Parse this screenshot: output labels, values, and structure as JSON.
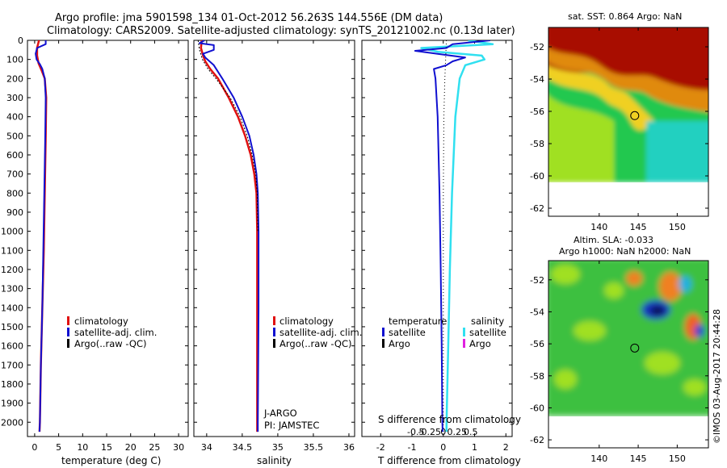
{
  "header": {
    "line1": "Argo profile: jma 5901598_134 01-Oct-2012 56.263S 144.556E (DM data)",
    "line2": "Climatology: CARS2009. Satellite-adjusted climatology: synTS_20121002.nc (0.13d later)"
  },
  "colors": {
    "climatology": "#e01010",
    "satellite": "#1010d0",
    "argo": "#000000",
    "sat_salinity": "#30e0f0",
    "argo_salinity": "#e020e0"
  },
  "credit": "©IMOS 03-Aug-2017 20:44:28",
  "chart_data": [
    {
      "type": "line",
      "id": "temperature",
      "xlabel": "temperature (deg C)",
      "ylabel": "",
      "xlim": [
        -1.5,
        32
      ],
      "ylim": [
        2075,
        0
      ],
      "xticks": [
        0,
        5,
        10,
        15,
        20,
        25,
        30
      ],
      "xtick_labels": [
        "0",
        "5",
        "10",
        "15",
        "20",
        "25",
        "30"
      ],
      "yticks": [
        0,
        100,
        200,
        300,
        400,
        500,
        600,
        700,
        800,
        900,
        1000,
        1100,
        1200,
        1300,
        1400,
        1500,
        1600,
        1700,
        1800,
        1900,
        2000
      ],
      "legend": [
        "climatology",
        "satellite-adj. clim.",
        "Argo(..raw -QC)"
      ],
      "series": [
        {
          "name": "climatology",
          "depth": [
            0,
            40,
            80,
            120,
            160,
            200,
            300,
            500,
            800,
            1100,
            1400,
            1700,
            2000,
            2050
          ],
          "values": [
            0.9,
            0.5,
            0.5,
            0.8,
            1.5,
            2.1,
            2.4,
            2.3,
            2.1,
            1.9,
            1.6,
            1.3,
            1.1,
            1.0
          ]
        },
        {
          "name": "satellite-adj. clim.",
          "depth": [
            0,
            20,
            40,
            70,
            100,
            125,
            150,
            200,
            300,
            500,
            800,
            1100,
            1400,
            1700,
            2000,
            2050
          ],
          "values": [
            2.3,
            2.3,
            0.5,
            0.2,
            0.4,
            1.1,
            1.6,
            2.1,
            2.3,
            2.2,
            2.0,
            1.8,
            1.6,
            1.3,
            1.1,
            1.0
          ]
        },
        {
          "name": "Argo(..raw -QC)",
          "depth": [],
          "values": []
        }
      ]
    },
    {
      "type": "line",
      "id": "salinity",
      "xlabel": "salinity",
      "ylabel": "",
      "xlim": [
        33.82,
        36.08
      ],
      "ylim": [
        2075,
        0
      ],
      "xticks": [
        34,
        34.5,
        35,
        35.5,
        36
      ],
      "xtick_labels": [
        "34",
        "34.5",
        "35",
        "35.5",
        "36"
      ],
      "legend": [
        "climatology",
        "satellite-adj. clim.",
        "Argo(..raw -QC)"
      ],
      "annotations": [
        "J-ARGO",
        "PI: JAMSTEC"
      ],
      "series": [
        {
          "name": "climatology",
          "depth": [
            0,
            40,
            80,
            110,
            150,
            200,
            300,
            400,
            500,
            600,
            700,
            800,
            1000,
            1400,
            2000,
            2050
          ],
          "values": [
            33.93,
            33.92,
            33.95,
            33.98,
            34.05,
            34.16,
            34.31,
            34.44,
            34.54,
            34.62,
            34.67,
            34.7,
            34.71,
            34.71,
            34.71,
            34.71
          ]
        },
        {
          "name": "satellite-adj. clim.",
          "depth": [
            0,
            15,
            25,
            50,
            70,
            90,
            130,
            200,
            300,
            400,
            500,
            600,
            700,
            800,
            1000,
            1400,
            2000,
            2050
          ],
          "values": [
            33.97,
            33.9,
            34.1,
            34.1,
            33.95,
            33.98,
            34.1,
            34.22,
            34.38,
            34.5,
            34.6,
            34.66,
            34.7,
            34.72,
            34.73,
            34.73,
            34.72,
            34.72
          ]
        },
        {
          "name": "Argo dotted",
          "depth": [
            0,
            50,
            100,
            150,
            200,
            300,
            400,
            500,
            600,
            700,
            800,
            1000
          ],
          "values": [
            33.88,
            33.9,
            33.94,
            34.02,
            34.13,
            34.33,
            34.47,
            34.57,
            34.64,
            34.69,
            34.71,
            34.72
          ]
        }
      ]
    },
    {
      "type": "line",
      "id": "difference",
      "xlabel": "T difference from climatology",
      "xlabel2": "S difference from climatology",
      "ylabel": "",
      "xlim": [
        -2.6,
        2.2
      ],
      "ylim": [
        2075,
        0
      ],
      "xticks": [
        -2,
        -1,
        0,
        1,
        2
      ],
      "xtick_labels": [
        "-2",
        "-1",
        "0",
        "1",
        "2"
      ],
      "sticks": [
        -0.5,
        -0.25,
        0,
        0.25,
        0.5
      ],
      "stick_labels": [
        "-0.5",
        "-0.25",
        "0",
        "0.25",
        "0.5"
      ],
      "legend_headers": [
        "temperature",
        "salinity"
      ],
      "legend": [
        "satellite",
        "Argo",
        "satellite",
        "Argo"
      ],
      "series": [
        {
          "name": "temperature satellite",
          "depth": [
            0,
            20,
            40,
            55,
            70,
            90,
            110,
            130,
            150,
            200,
            400,
            800,
            1200,
            1600,
            2000,
            2050
          ],
          "values": [
            1.5,
            0.3,
            0.1,
            -0.9,
            -0.2,
            0.7,
            0.3,
            0.1,
            -0.3,
            -0.25,
            -0.18,
            -0.12,
            -0.08,
            -0.05,
            -0.03,
            -0.02
          ]
        },
        {
          "name": "salinity satellite",
          "depth": [
            0,
            20,
            40,
            60,
            80,
            100,
            130,
            200,
            400,
            800,
            1200,
            1600,
            2000,
            2050
          ],
          "values": [
            0.45,
            0.9,
            -0.4,
            -0.1,
            0.7,
            0.75,
            0.4,
            0.3,
            0.22,
            0.16,
            0.12,
            0.09,
            0.06,
            0.06
          ]
        },
        {
          "name": "zero dotted",
          "depth": [
            0,
            200,
            400,
            800,
            2050
          ],
          "values": [
            0.1,
            0.05,
            0.02,
            0.0,
            0.0
          ]
        }
      ]
    },
    {
      "type": "heatmap",
      "id": "sst_map",
      "title": "sat. SST: 0.864 Argo: NaN",
      "xlim": [
        133.5,
        154
      ],
      "ylim": [
        -62.5,
        -50.8
      ],
      "xticks": [
        140,
        145,
        150
      ],
      "xtick_labels": [
        "140",
        "145",
        "150"
      ],
      "yticks": [
        -52,
        -54,
        -56,
        -58,
        -60,
        -62
      ],
      "ytick_labels": [
        "-52",
        "-54",
        "-56",
        "-58",
        "-60",
        "-62"
      ],
      "marker": {
        "lon": 144.556,
        "lat": -56.263
      }
    },
    {
      "type": "heatmap",
      "id": "sla_map",
      "title": "Altim. SLA: -0.033",
      "subtitle": "Argo h1000: NaN h2000: NaN",
      "xlim": [
        133.5,
        154
      ],
      "ylim": [
        -62.5,
        -50.8
      ],
      "xticks": [
        140,
        145,
        150
      ],
      "xtick_labels": [
        "140",
        "145",
        "150"
      ],
      "yticks": [
        -52,
        -54,
        -56,
        -58,
        -60,
        -62
      ],
      "ytick_labels": [
        "-52",
        "-54",
        "-56",
        "-58",
        "-60",
        "-62"
      ],
      "marker": {
        "lon": 144.556,
        "lat": -56.263
      }
    }
  ]
}
